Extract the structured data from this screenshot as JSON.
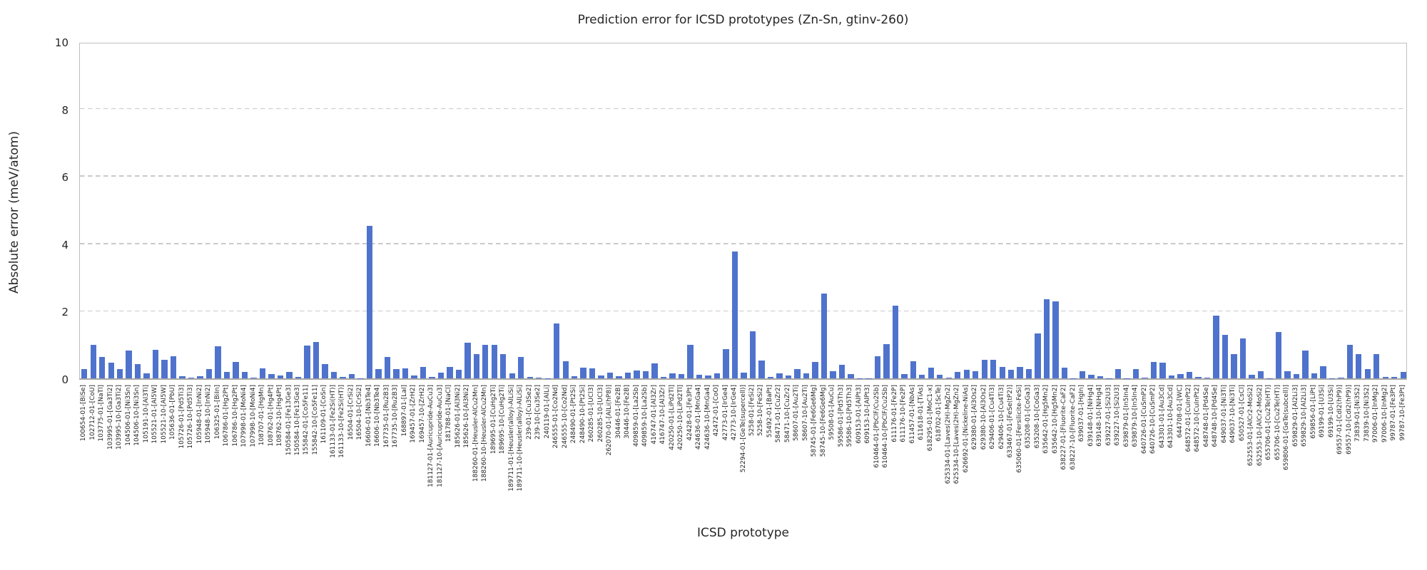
{
  "chart_data": {
    "type": "bar",
    "title": "Prediction error for ICSD prototypes (Zn-Sn, gtinv-260)",
    "xlabel": "ICSD prototype",
    "ylabel": "Absolute error (meV/atom)",
    "ylim": [
      0,
      10
    ],
    "y_ticks": [
      0,
      2,
      4,
      6,
      8,
      10
    ],
    "grid": "horizontal-dashed",
    "legend": "none",
    "bar_color": "#4f73cd",
    "categories": [
      "100654-01-[BiSe]",
      "102712-01-[CoU]",
      "103775-01-[NaTl]",
      "103995-01-[Ga3Ti2]",
      "103995-10-[Ga3Ti2]",
      "104506-01-[Ni3Sn]",
      "104506-10-[Ni3Sn]",
      "105191-10-[Al3Ti]",
      "105521-01-[Al5W]",
      "105521-10-[Al5W]",
      "105636-01-[PbU]",
      "105726-01-[Pd5Ti3]",
      "105726-10-[Pd5Ti3]",
      "105948-01-[InNi2]",
      "105948-10-[InNi2]",
      "106325-01-[BiIn]",
      "106786-01-[Hg2Pt]",
      "106786-10-[Hg2Pt]",
      "107998-01-[MoNi4]",
      "107998-10-[MoNi4]",
      "108707-01-[HgMn]",
      "108762-01-[Hg4Pt]",
      "108762-10-[Hg4Pt]",
      "150584-01-[Fe13Ge3]",
      "150584-10-[Fe13Ge3]",
      "155842-01-[Co5Fe11]",
      "155842-10-[Co5Fe11]",
      "161109-01-[CoSn]",
      "161133-01-[Fe2Si(HT)]",
      "161133-10-[Fe2Si(HT)]",
      "16504-01-[CrSi2]",
      "16504-10-[CrSi2]",
      "16606-01-[Nb3Te4]",
      "16606-10-[Nb3Te4]",
      "167735-01-[Ru2B3]",
      "167735-10-[Ru2B3]",
      "168897-01-[LaI]",
      "169457-01-[ZrH2]",
      "169457-10-[ZrH2]",
      "181127-01-[Auricupride-AuCu3]",
      "181127-10-[Auricupride-AuCu3]",
      "181788-01-[NaCl]",
      "185626-01-[Al3Ni2]",
      "185626-10-[Al3Ni2]",
      "188260-01-[Heusler-AlCu2Mn]",
      "188260-10-[Heusler-AlCu2Mn]",
      "189695-01-[CuHg2Ti]",
      "189695-10-[CuHg2Ti]",
      "189711-01-[Heusler(alloy)-AlLiSi]",
      "189711-10-[Heusler(alloy)-AlLiSi]",
      "239-01-[Cu3Se2]",
      "239-10-[Cu3Se2]",
      "240119-01-[AlLi]",
      "246555-01-[Co2Nd]",
      "246555-10-[Co2Nd]",
      "248490-01-[Pt2Si]",
      "248490-10-[Pt2Si]",
      "260285-01-[UCl3]",
      "260285-10-[UCl3]",
      "262070-01-[AlLi(hP8)]",
      "30446-01-[Fe2B]",
      "30446-10-[Fe2B]",
      "409859-01-[La2Sb]",
      "409859-10-[La2Sb]",
      "416747-01-[Al3Zr]",
      "416747-10-[Al3Zr]",
      "420250-01-[LiPd2Tl]",
      "420250-10-[LiPd2Tl]",
      "42428-01-[Fe3Pt]",
      "424636-01-[MnGa4]",
      "424636-10-[MnGa4]",
      "42472-01-[CoO]",
      "42773-01-[IrGe4]",
      "42773-10-[IrGe4]",
      "52294-01-[GeTe(supercell)]",
      "5258-01-[FeSi2]",
      "5258-10-[FeSi2]",
      "55492-01-[BaPt]",
      "58471-01-[CuZr2]",
      "58471-10-[CuZr2]",
      "58607-01-[Au2Ti]",
      "58607-10-[Au2Ti]",
      "58745-01-[Fe6Ge6Mg]",
      "58745-10-[Fe6Ge6Mg]",
      "59508-01-[AuCu]",
      "59586-01-[Pd5Th3]",
      "59586-10-[Pd5Th3]",
      "609153-01-[AlPt3]",
      "609153-10-[AlPt3]",
      "610464-01-[PbClF/Cu2Sb]",
      "610464-10-[PbClF/Cu2Sb]",
      "611176-01-[Fe2P]",
      "611176-10-[Fe2P]",
      "611457-01-[NbAs]",
      "611618-01-[TiAs]",
      "618295-01-[MoC1-x]",
      "618702-01-[ScTe]",
      "625334-01-[Laves(2H)-MgZn2]",
      "625334-10-[Laves(2H)-MgZn2]",
      "626692-01-[Nickeline-NiAs]",
      "629380-01-[Al3Os2]",
      "629380-10-[Al3Os2]",
      "629406-01-[Cu4Ti3]",
      "629406-10-[Cu4Ti3]",
      "633467-01-[FeSe(tP2)]",
      "635060-01-[Fersilicite-FeSi]",
      "635208-01-[CoGa3]",
      "635208-10-[CoGa3]",
      "635642-01-[Hg5Mn2]",
      "635642-10-[Hg5Mn2]",
      "638227-01-[Fluorite-CaF2]",
      "638227-10-[Fluorite-CaF2]",
      "639037-01-[HgIn]",
      "639148-01-[NiHg4]",
      "639148-10-[NiHg4]",
      "639227-01-[Si2U3]",
      "639227-10-[Si2U3]",
      "639879-01-[In5In4]",
      "639879-10-[In5In4]",
      "640726-01-[CuSmP2]",
      "640726-10-[CuSmP2]",
      "643301-01-[Au3Cd]",
      "643301-10-[Au3Cd]",
      "644708-01-[WC]",
      "648572-01-[CuInPt2]",
      "648572-10-[CuInPt2]",
      "648748-01-[Pd4Se]",
      "648748-10-[Pd4Se]",
      "649037-01-[Ni3Ti]",
      "649037-10-[Ni3Ti]",
      "650527-01-[CsCl]",
      "652553-01-[AlCr2-MoSi2]",
      "652553-10-[AlCr2-MoSi2]",
      "655706-01-[Cu2Te(HT)]",
      "655706-10-[Cu2Te(HT)]",
      "659806-01-[GeTe(subcell)]",
      "659829-01-[Al2Li3]",
      "659829-10-[Al2Li3]",
      "659856-01-[LiPt]",
      "69199-01-[U3Si]",
      "69199-10-[U3Si]",
      "69557-01-[CdI2(hP9)]",
      "69557-10-[CdI2(hP9)]",
      "73839-01-[Ni3S2]",
      "73839-10-[Ni3S2]",
      "97006-01-[InMg2]",
      "97006-10-[InMg2]",
      "99787-01-[Fe3Pt]",
      "99787-10-[Fe3Pt]"
    ],
    "values": [
      0.27,
      1.0,
      0.63,
      0.46,
      0.27,
      0.82,
      0.43,
      0.15,
      0.84,
      0.55,
      0.65,
      0.06,
      0.02,
      0.06,
      0.27,
      0.95,
      0.2,
      0.48,
      0.2,
      0.02,
      0.3,
      0.13,
      0.08,
      0.2,
      0.04,
      0.98,
      1.07,
      0.42,
      0.2,
      0.04,
      0.13,
      0.01,
      4.52,
      0.28,
      0.63,
      0.27,
      0.29,
      0.08,
      0.34,
      0.04,
      0.18,
      0.34,
      0.26,
      1.06,
      0.71,
      0.99,
      0.99,
      0.72,
      0.15,
      0.64,
      0.05,
      0.02,
      0.01,
      1.63,
      0.51,
      0.07,
      0.31,
      0.29,
      0.09,
      0.16,
      0.07,
      0.17,
      0.24,
      0.21,
      0.44,
      0.04,
      0.15,
      0.12,
      1.0,
      0.1,
      0.08,
      0.15,
      0.86,
      3.77,
      0.18,
      1.4,
      0.52,
      0.04,
      0.15,
      0.09,
      0.28,
      0.15,
      0.49,
      2.51,
      0.22,
      0.4,
      0.12,
      0.01,
      0.01,
      0.65,
      1.01,
      2.16,
      0.13,
      0.51,
      0.11,
      0.31,
      0.1,
      0.02,
      0.2,
      0.25,
      0.22,
      0.54,
      0.56,
      0.34,
      0.26,
      0.34,
      0.27,
      1.33,
      2.35,
      2.29,
      0.32,
      0.01,
      0.22,
      0.11,
      0.07,
      0.01,
      0.27,
      0.01,
      0.28,
      0.03,
      0.48,
      0.46,
      0.08,
      0.13,
      0.2,
      0.04,
      0.03,
      1.86,
      1.28,
      0.71,
      1.19,
      0.1,
      0.21,
      0.01,
      1.37,
      0.21,
      0.12,
      0.82,
      0.14,
      0.35,
      0.01,
      0.02,
      1.0,
      0.72,
      0.27,
      0.71,
      0.04,
      0.04,
      0.19
    ]
  }
}
